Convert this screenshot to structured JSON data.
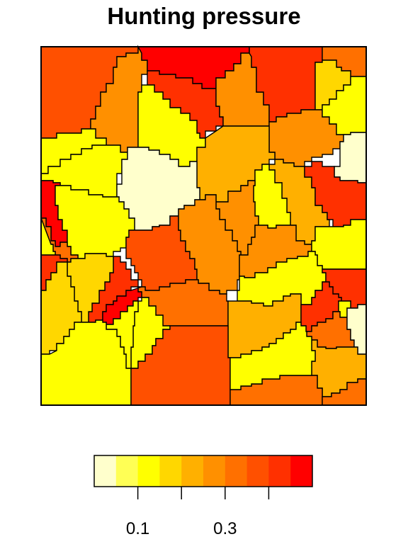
{
  "title": "Hunting pressure",
  "legend": {
    "ticks": [
      {
        "value": 0.1,
        "label": "0.1"
      },
      {
        "value": 0.2,
        "label": ""
      },
      {
        "value": 0.3,
        "label": "0.3"
      },
      {
        "value": 0.4,
        "label": ""
      }
    ],
    "range": [
      0.0,
      0.5
    ],
    "colors": [
      "#FFFFCC",
      "#FFFF55",
      "#FFFF00",
      "#FFD700",
      "#FFB000",
      "#FF9000",
      "#FF7000",
      "#FF5000",
      "#FF3000",
      "#FF0000"
    ]
  },
  "regions": [
    {
      "id": "r01",
      "value": 0.37
    },
    {
      "id": "r02",
      "value": 0.27
    },
    {
      "id": "r03",
      "value": 0.46
    },
    {
      "id": "r04",
      "value": 0.4
    },
    {
      "id": "r05",
      "value": 0.26
    },
    {
      "id": "r06",
      "value": 0.14
    },
    {
      "id": "r07",
      "value": 0.12
    },
    {
      "id": "r08",
      "value": 0.42
    },
    {
      "id": "r09",
      "value": 0.34
    },
    {
      "id": "r10",
      "value": 0.17
    },
    {
      "id": "r11",
      "value": 0.27
    },
    {
      "id": "r12",
      "value": 0.12
    },
    {
      "id": "r13",
      "value": 0.22
    },
    {
      "id": "r14",
      "value": 0.02
    },
    {
      "id": "r15",
      "value": 0.14
    },
    {
      "id": "r16",
      "value": 0.02
    },
    {
      "id": "r17",
      "value": 0.22
    },
    {
      "id": "r18",
      "value": 0.47
    },
    {
      "id": "r19",
      "value": 0.41
    },
    {
      "id": "r20",
      "value": 0.12
    },
    {
      "id": "r21",
      "value": 0.12
    },
    {
      "id": "r22",
      "value": 0.26
    },
    {
      "id": "r23",
      "value": 0.31
    },
    {
      "id": "r24",
      "value": 0.13
    },
    {
      "id": "r25",
      "value": 0.37
    },
    {
      "id": "r26",
      "value": 0.43
    },
    {
      "id": "r27",
      "value": 0.41
    },
    {
      "id": "r28",
      "value": 0.15
    },
    {
      "id": "r29",
      "value": 0.28
    },
    {
      "id": "r30",
      "value": 0.32
    },
    {
      "id": "r31",
      "value": 0.28
    },
    {
      "id": "r32",
      "value": 0.14
    },
    {
      "id": "r33",
      "value": 0.12
    },
    {
      "id": "r34",
      "value": 0.42
    },
    {
      "id": "r35",
      "value": 0.15
    },
    {
      "id": "r36",
      "value": 0.46
    },
    {
      "id": "r37",
      "value": 0.12
    },
    {
      "id": "r38",
      "value": 0.13
    },
    {
      "id": "r39",
      "value": 0.22
    },
    {
      "id": "r40",
      "value": 0.41
    },
    {
      "id": "r41",
      "value": 0.12
    },
    {
      "id": "r42",
      "value": 0.33
    },
    {
      "id": "r43",
      "value": 0.13
    },
    {
      "id": "r44",
      "value": 0.02
    },
    {
      "id": "r45",
      "value": 0.36
    },
    {
      "id": "r46",
      "value": 0.22
    },
    {
      "id": "r47",
      "value": 0.31
    },
    {
      "id": "r48",
      "value": 0.12
    },
    {
      "id": "r49",
      "value": 0.32
    },
    {
      "id": "r50",
      "value": 0.37
    },
    {
      "id": "r51",
      "value": 0.12
    },
    {
      "id": "r52",
      "value": 0.27
    },
    {
      "id": "r53",
      "value": 0.38
    },
    {
      "id": "r54",
      "value": 0.22
    }
  ]
}
